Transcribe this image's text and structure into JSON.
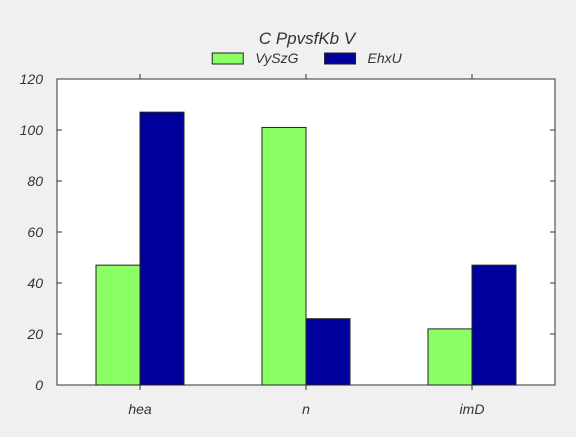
{
  "colors": {
    "background": "#f0f0f0",
    "plot_background": "#ffffff",
    "axis": "#333333"
  },
  "chart_data": {
    "type": "bar",
    "title": "C PpvsfKb V",
    "xlabel": "",
    "ylabel": "",
    "categories": [
      "hea",
      "n",
      "imD"
    ],
    "series": [
      {
        "name": "VySzG",
        "values": [
          47,
          101,
          22
        ],
        "color": "#8cff66"
      },
      {
        "name": "EhxU",
        "values": [
          107,
          26,
          47
        ],
        "color": "#00009c"
      }
    ],
    "ylim": [
      0,
      120
    ],
    "yticks": [
      0,
      20,
      40,
      60,
      80,
      100,
      120
    ],
    "grid": false,
    "legend_position": "top-center"
  }
}
